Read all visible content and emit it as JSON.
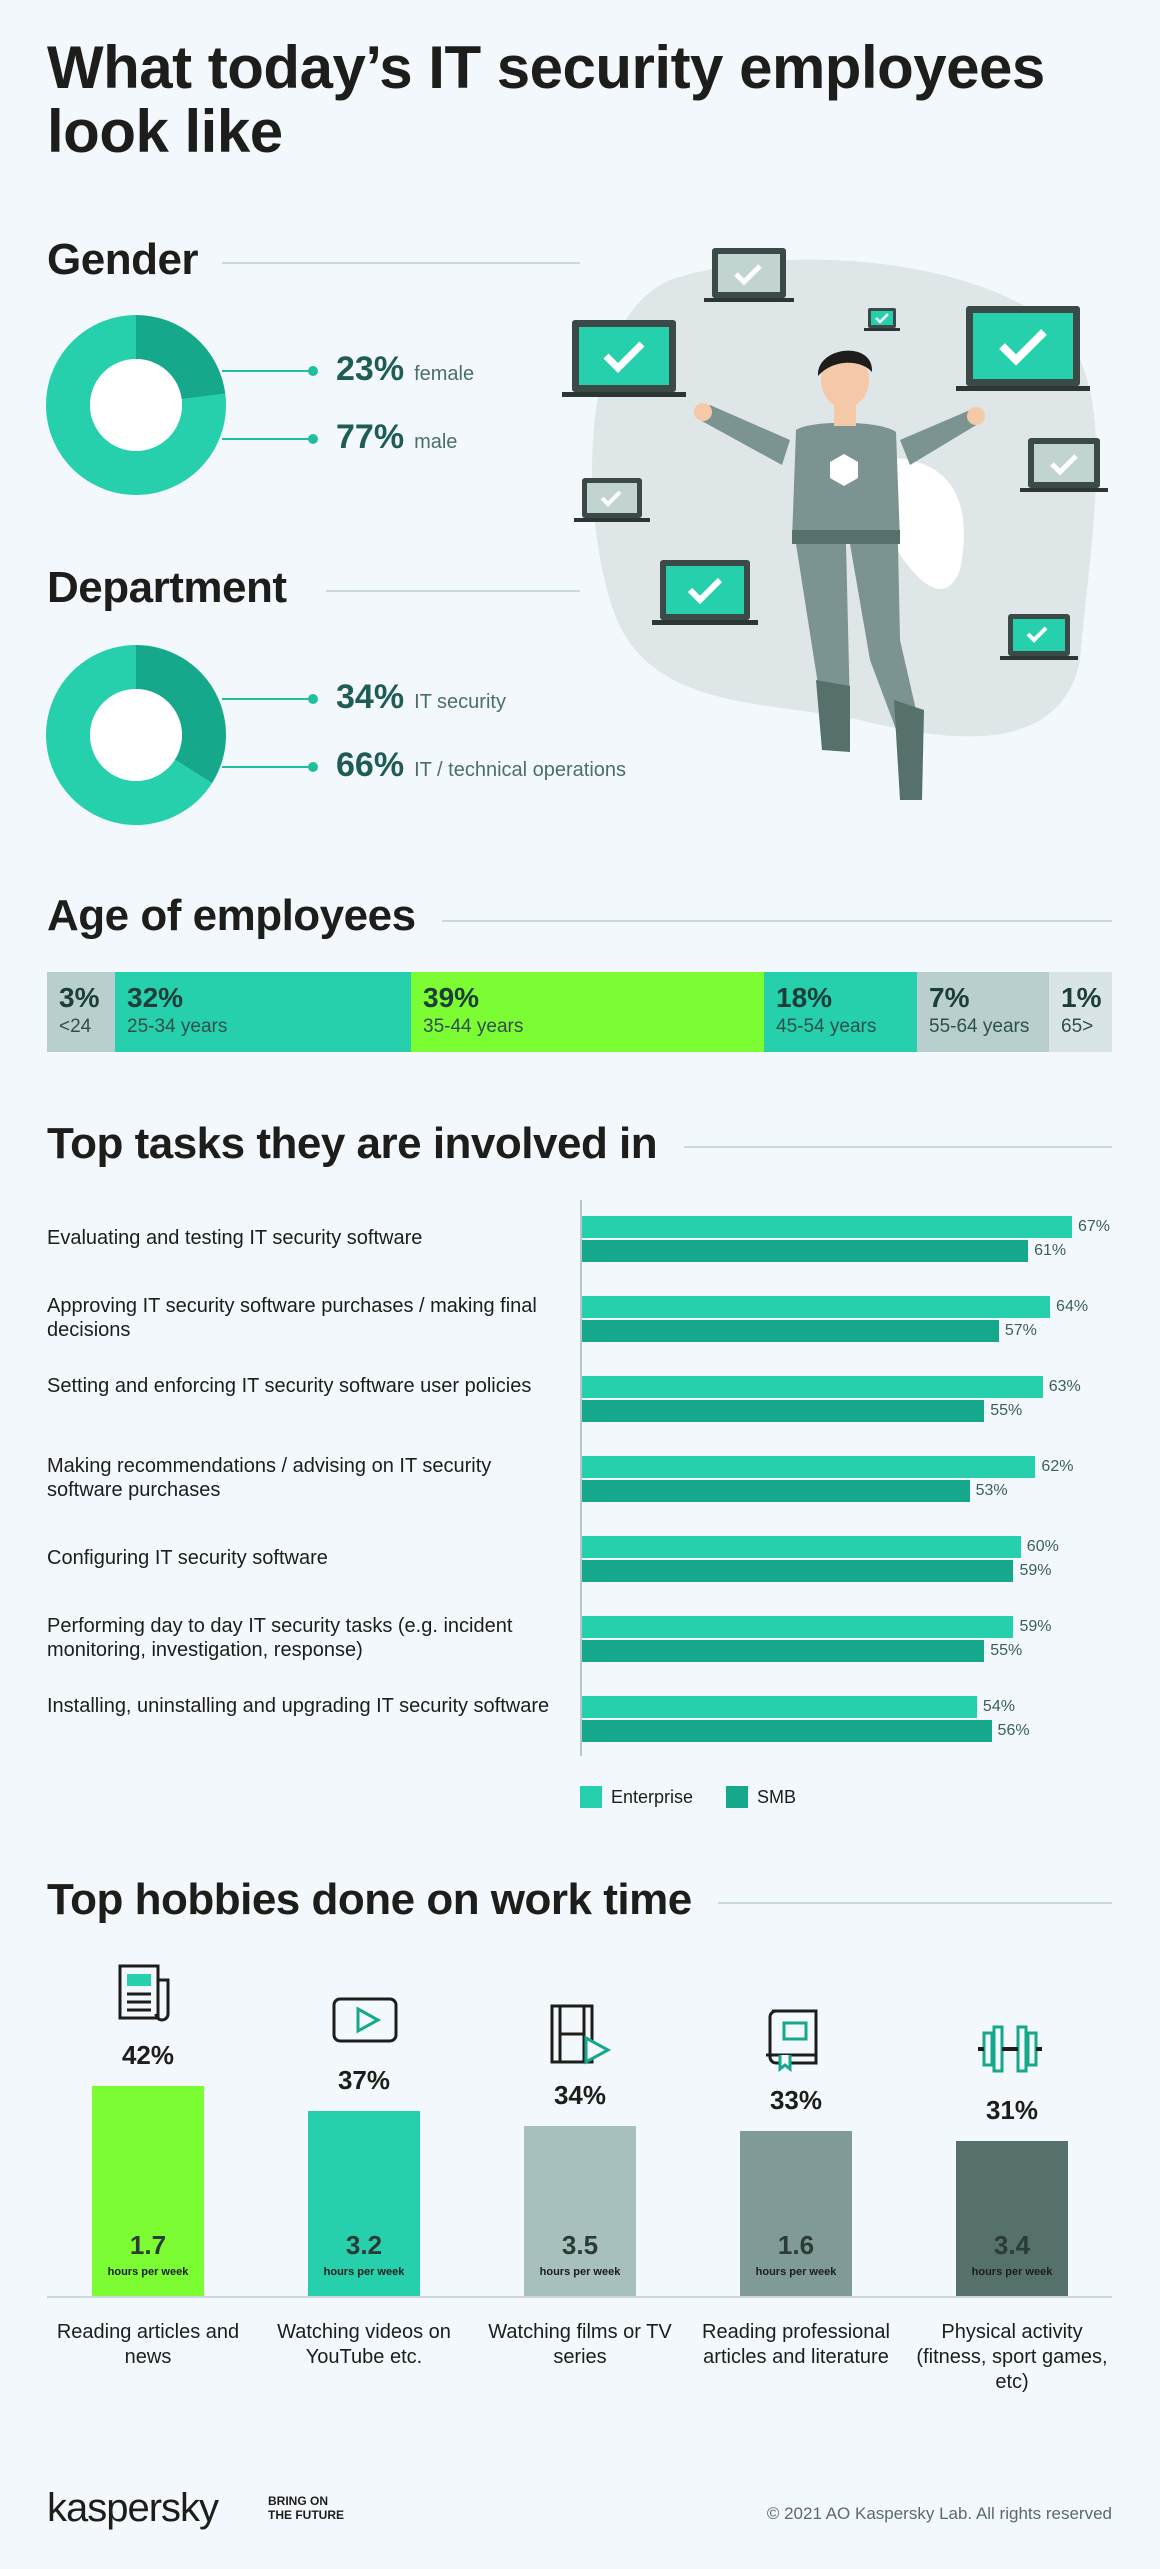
{
  "title": "What today’s IT security employees look like",
  "gender": {
    "heading": "Gender",
    "items": [
      {
        "pct": "23%",
        "label": "female",
        "value": 23
      },
      {
        "pct": "77%",
        "label": "male",
        "value": 77
      }
    ]
  },
  "department": {
    "heading": "Department",
    "items": [
      {
        "pct": "34%",
        "label": "IT security",
        "value": 34
      },
      {
        "pct": "66%",
        "label": "IT / technical operations",
        "value": 66
      }
    ]
  },
  "age": {
    "heading": "Age of employees",
    "segments": [
      {
        "pct": "3%",
        "label": "<24",
        "value": 3,
        "color": "#b9cfcd"
      },
      {
        "pct": "32%",
        "label": "25-34 years",
        "value": 32,
        "color": "#26d0ad"
      },
      {
        "pct": "39%",
        "label": "35-44 years",
        "value": 39,
        "color": "#7cfc32"
      },
      {
        "pct": "18%",
        "label": "45-54 years",
        "value": 18,
        "color": "#26d0ad"
      },
      {
        "pct": "7%",
        "label": "55-64 years",
        "value": 7,
        "color": "#b9cfcd"
      },
      {
        "pct": "1%",
        "label": "65>",
        "value": 1,
        "color": "#d9e4e6"
      }
    ]
  },
  "tasks": {
    "heading": "Top tasks they are involved in",
    "legend": {
      "enterprise": "Enterprise",
      "smb": "SMB"
    },
    "colors": {
      "enterprise": "#26d0ad",
      "smb": "#16a88a"
    }
  },
  "hobbies": {
    "heading": "Top hobbies done on work time",
    "unit": "hours per week",
    "items": [
      {
        "pct": "42%",
        "value": 42,
        "hours": "1.7",
        "label": "Reading articles and news",
        "color": "#7cfc32",
        "icon": "newspaper-icon"
      },
      {
        "pct": "37%",
        "value": 37,
        "hours": "3.2",
        "label": "Watching videos on YouTube etc.",
        "color": "#26d0ad",
        "icon": "video-play-icon"
      },
      {
        "pct": "34%",
        "value": 34,
        "hours": "3.5",
        "label": "Watching films or TV series",
        "color": "#a7bfbd",
        "icon": "film-icon"
      },
      {
        "pct": "33%",
        "value": 33,
        "hours": "1.6",
        "label": "Reading professional articles and literature",
        "color": "#7f9a97",
        "icon": "book-icon"
      },
      {
        "pct": "31%",
        "value": 31,
        "hours": "3.4",
        "label": "Physical activity (fitness, sport games, etc)",
        "color": "#56706c",
        "icon": "dumbbell-icon"
      }
    ]
  },
  "footer": {
    "brand": "kaspersky",
    "tagline_1": "BRING ON",
    "tagline_2": "THE FUTURE",
    "copyright": "© 2021 AO Kaspersky Lab. All rights reserved"
  },
  "chart_data": [
    {
      "type": "pie",
      "title": "Gender",
      "categories": [
        "female",
        "male"
      ],
      "values": [
        23,
        77
      ]
    },
    {
      "type": "pie",
      "title": "Department",
      "categories": [
        "IT security",
        "IT / technical operations"
      ],
      "values": [
        34,
        66
      ]
    },
    {
      "type": "bar",
      "title": "Age of employees",
      "categories": [
        "<24",
        "25-34 years",
        "35-44 years",
        "45-54 years",
        "55-64 years",
        "65>"
      ],
      "values": [
        3,
        32,
        39,
        18,
        7,
        1
      ]
    },
    {
      "type": "bar",
      "title": "Top tasks they are involved in",
      "categories": [
        "Evaluating and testing IT security software",
        "Approving IT security software purchases / making final decisions",
        "Setting and enforcing IT security software user policies",
        "Making recommendations / advising on IT security software purchases",
        "Configuring IT security software",
        "Performing day to day IT security tasks (e.g. incident monitoring, investigation, response)",
        "Installing, uninstalling and upgrading IT security software"
      ],
      "series": [
        {
          "name": "Enterprise",
          "values": [
            67,
            64,
            63,
            62,
            60,
            59,
            54
          ]
        },
        {
          "name": "SMB",
          "values": [
            61,
            57,
            55,
            53,
            59,
            55,
            56
          ]
        }
      ]
    },
    {
      "type": "bar",
      "title": "Top hobbies done on work time",
      "categories": [
        "Reading articles and news",
        "Watching videos on YouTube etc.",
        "Watching films or TV series",
        "Reading professional articles and literature",
        "Physical activity (fitness, sport games, etc)"
      ],
      "values": [
        42,
        37,
        34,
        33,
        31
      ],
      "hours_per_week": [
        1.7,
        3.2,
        3.5,
        1.6,
        3.4
      ]
    }
  ]
}
